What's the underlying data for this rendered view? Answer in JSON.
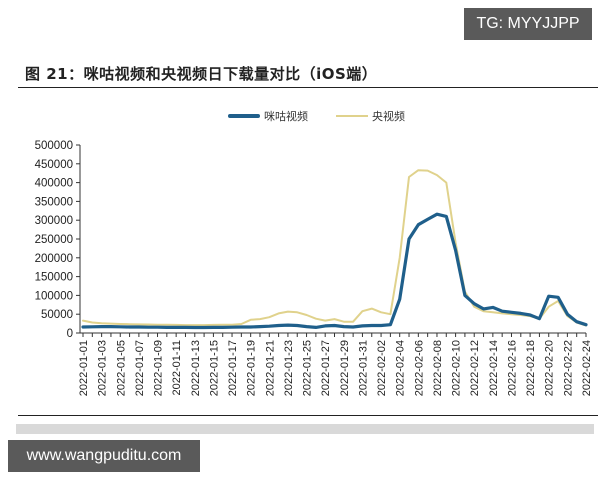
{
  "watermarks": {
    "top": "TG: MYYJJPP",
    "bottom": "www.wangpuditu.com"
  },
  "figure": {
    "title": "图 21：咪咕视频和央视频日下载量对比（iOS端）"
  },
  "colors": {
    "migu": "#1f5f8b",
    "cctv": "#e0d28c"
  },
  "chart_data": {
    "type": "line",
    "title": "图 21：咪咕视频和央视频日下载量对比（iOS端）",
    "xlabel": "",
    "ylabel": "",
    "ylim": [
      0,
      500000
    ],
    "yticks": [
      0,
      50000,
      100000,
      150000,
      200000,
      250000,
      300000,
      350000,
      400000,
      450000,
      500000
    ],
    "legend_position": "top",
    "grid": false,
    "x_tick_labels": [
      "2022-01-01",
      "2022-01-03",
      "2022-01-05",
      "2022-01-07",
      "2022-01-09",
      "2022-01-11",
      "2022-01-13",
      "2022-01-15",
      "2022-01-17",
      "2022-01-19",
      "2022-01-21",
      "2022-01-23",
      "2022-01-25",
      "2022-01-27",
      "2022-01-29",
      "2022-01-31",
      "2022-02-02",
      "2022-02-04",
      "2022-02-06",
      "2022-02-08",
      "2022-02-10",
      "2022-02-12",
      "2022-02-14",
      "2022-02-16",
      "2022-02-18",
      "2022-02-20",
      "2022-02-22",
      "2022-02-24"
    ],
    "x": [
      "2022-01-01",
      "2022-01-02",
      "2022-01-03",
      "2022-01-04",
      "2022-01-05",
      "2022-01-06",
      "2022-01-07",
      "2022-01-08",
      "2022-01-09",
      "2022-01-10",
      "2022-01-11",
      "2022-01-12",
      "2022-01-13",
      "2022-01-14",
      "2022-01-15",
      "2022-01-16",
      "2022-01-17",
      "2022-01-18",
      "2022-01-19",
      "2022-01-20",
      "2022-01-21",
      "2022-01-22",
      "2022-01-23",
      "2022-01-24",
      "2022-01-25",
      "2022-01-26",
      "2022-01-27",
      "2022-01-28",
      "2022-01-29",
      "2022-01-30",
      "2022-01-31",
      "2022-02-01",
      "2022-02-02",
      "2022-02-03",
      "2022-02-04",
      "2022-02-05",
      "2022-02-06",
      "2022-02-07",
      "2022-02-08",
      "2022-02-09",
      "2022-02-10",
      "2022-02-11",
      "2022-02-12",
      "2022-02-13",
      "2022-02-14",
      "2022-02-15",
      "2022-02-16",
      "2022-02-17",
      "2022-02-18",
      "2022-02-19",
      "2022-02-20",
      "2022-02-21",
      "2022-02-22",
      "2022-02-23",
      "2022-02-24"
    ],
    "series": [
      {
        "name": "咪咕视频",
        "color": "#1f5f8b",
        "values": [
          16000,
          16500,
          17000,
          17000,
          16500,
          16000,
          16000,
          15500,
          15500,
          15000,
          15000,
          15000,
          14500,
          14500,
          15000,
          15000,
          15500,
          16000,
          16000,
          17000,
          18000,
          20000,
          21000,
          20000,
          17000,
          15000,
          19000,
          20000,
          17000,
          16000,
          19000,
          20000,
          20000,
          22000,
          90000,
          250000,
          288000,
          302000,
          316000,
          310000,
          220000,
          100000,
          78000,
          64000,
          68000,
          58000,
          55000,
          52000,
          48000,
          38000,
          98000,
          95000,
          50000,
          30000,
          22000
        ]
      },
      {
        "name": "央视频",
        "color": "#e0d28c",
        "values": [
          33000,
          28000,
          26000,
          25000,
          24000,
          23500,
          23000,
          22500,
          22000,
          22000,
          21500,
          21000,
          21000,
          21000,
          21500,
          22000,
          22000,
          24000,
          35000,
          37000,
          42000,
          52000,
          57000,
          55000,
          48000,
          38000,
          33000,
          37000,
          30000,
          30000,
          58000,
          65000,
          55000,
          50000,
          200000,
          415000,
          433000,
          432000,
          420000,
          400000,
          240000,
          110000,
          70000,
          58000,
          55000,
          52000,
          50000,
          48000,
          45000,
          38000,
          70000,
          85000,
          45000,
          28000,
          20000
        ]
      }
    ]
  }
}
